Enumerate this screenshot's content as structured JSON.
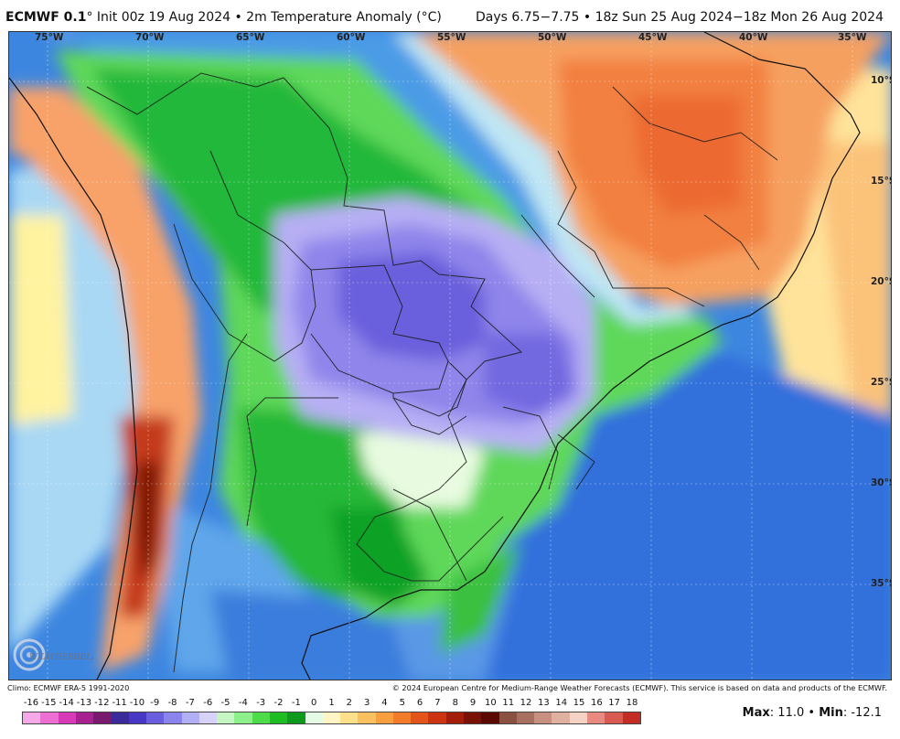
{
  "header": {
    "model": "ECMWF 0.1",
    "init": "° Init 00z 19 Aug 2024 • 2m Temperature Anomaly (°C)",
    "valid": "Days 6.75−7.75 • 18z Sun 25 Aug 2024−18z Mon 26 Aug 2024"
  },
  "map": {
    "longitude_labels": [
      "75°W",
      "70°W",
      "65°W",
      "60°W",
      "55°W",
      "50°W",
      "45°W",
      "40°W",
      "35°W"
    ],
    "latitude_labels": [
      "10°S",
      "15°S",
      "20°S",
      "25°S",
      "30°S",
      "35°S"
    ]
  },
  "logo": {
    "text": "WEATHERBELL"
  },
  "credits": {
    "climo": "Climo: ECMWF ERA-5 1991-2020",
    "copyright": "© 2024 European Centre for Medium-Range Weather Forecasts (ECMWF). This service is based on data and products of the ECMWF."
  },
  "legend": {
    "ticks": [
      "-16",
      "-15",
      "-14",
      "-13",
      "-12",
      "-11",
      "-10",
      "-9",
      "-8",
      "-7",
      "-6",
      "-5",
      "-4",
      "-3",
      "-2",
      "-1",
      "0",
      "1",
      "2",
      "3",
      "4",
      "5",
      "6",
      "7",
      "8",
      "9",
      "10",
      "11",
      "12",
      "13",
      "14",
      "15",
      "16",
      "17",
      "18"
    ],
    "colors": [
      "#f7a8e6",
      "#ee6fd4",
      "#d93ab8",
      "#a8228f",
      "#7a1a6e",
      "#3b2b9a",
      "#4836c4",
      "#6a5de0",
      "#8b84ec",
      "#b3aff4",
      "#d7d3f8",
      "#c6f6c3",
      "#8ef08a",
      "#4fdc4a",
      "#1fbd24",
      "#0e9a1c",
      "#e6fbe6",
      "#fff6c4",
      "#fde08a",
      "#fbc060",
      "#f8a040",
      "#f27c2a",
      "#e4551c",
      "#cc3412",
      "#a41d08",
      "#7a1203",
      "#5a0a02",
      "#8a5040",
      "#a87060",
      "#c89080",
      "#e0b0a0",
      "#f4d2c4",
      "#e88a80",
      "#d95a50",
      "#c42d24"
    ]
  },
  "stats": {
    "max_label": "Max",
    "max_value": ": 11.0 •",
    "min_label": "Min",
    "min_value": ": -12.1"
  }
}
